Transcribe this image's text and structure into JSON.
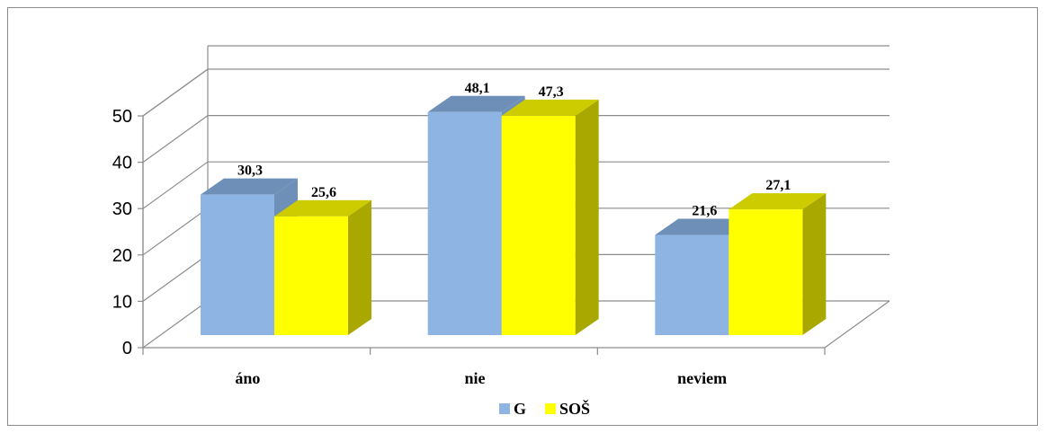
{
  "chart_data": {
    "type": "bar",
    "categories": [
      "áno",
      "nie",
      "neviem"
    ],
    "series": [
      {
        "name": "G",
        "values": [
          30.3,
          48.1,
          21.6
        ],
        "color": "#8DB4E2",
        "top": "#6E8FB8",
        "side": "#6E8FB8"
      },
      {
        "name": "SOŠ",
        "values": [
          25.6,
          47.3,
          27.1
        ],
        "color": "#FFFF00",
        "top": "#CCCC00",
        "side": "#A8A800"
      }
    ],
    "data_labels": [
      [
        "30,3",
        "48,1",
        "21,6"
      ],
      [
        "25,6",
        "47,3",
        "27,1"
      ]
    ],
    "y_ticks": [
      "0",
      "10",
      "20",
      "30",
      "40",
      "50"
    ],
    "ylim": [
      0,
      50
    ],
    "grid": true,
    "legend_position": "bottom",
    "three_d": true
  }
}
